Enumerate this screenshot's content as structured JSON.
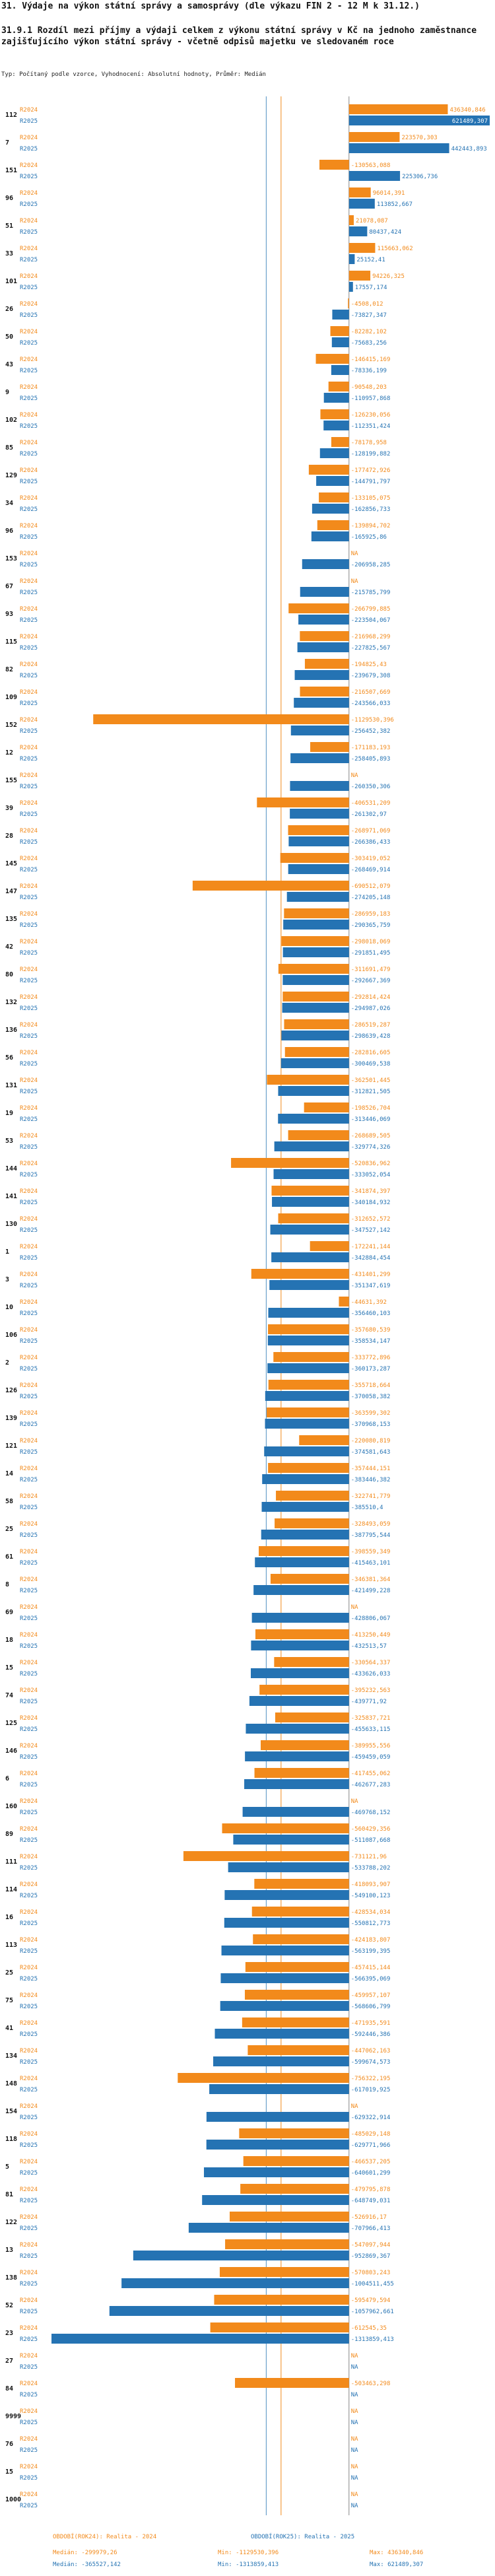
{
  "page": {
    "title": "31. Výdaje na výkon státní správy a samosprávy (dle výkazu FIN 2 - 12 M k 31.12.)",
    "subtitle": "31.9.1 Rozdíl mezi příjmy a výdaji celkem z výkonu státní správy v Kč na jednoho zaměstnance zajišťujícího výkon státní správy - včetně odpisů majetku ve sledovaném roce",
    "type_line": "Typ: Počítaný podle vzorce, Vyhodnocení: Absolutní hodnoty, Průměr: Medián"
  },
  "colors": {
    "y2024": "#f28a1b",
    "y2025": "#2573b3",
    "axis": "#888888",
    "median2024": "#f28a1b",
    "median2025": "#2573b3"
  },
  "footer": {
    "p2024_label": "OBDOBÍ(ROK24): Realita - 2024",
    "p2025_label": "OBDOBÍ(ROK25): Realita - 2025",
    "median2024": "Medián: -299979,26",
    "median2025": "Medián: -365527,142",
    "min2024": "Min: -1129530,396",
    "min2025": "Min: -1313859,413",
    "max2024": "Max: 436340,846",
    "max2025": "Max: 621489,307"
  },
  "chart_data": {
    "type": "bar",
    "orientation": "horizontal",
    "title": "31.9.1 Rozdíl mezi příjmy a výdaji celkem z výkonu státní správy v Kč na jednoho zaměstnance zajišťujícího výkon státní správy - včetně odpisů majetku ve sledovaném roce",
    "xlim": [
      -1313859.413,
      621489.307
    ],
    "medians": {
      "R2024": -299979.26,
      "R2025": -365527.142
    },
    "series_names": [
      "R2024",
      "R2025"
    ],
    "rows": [
      {
        "id": "112",
        "v24": 436340.846,
        "v25": 621489.307,
        "t24": "436340,846",
        "t25": "621489,307"
      },
      {
        "id": "7",
        "v24": 223570.303,
        "v25": 442443.893,
        "t24": "223570,303",
        "t25": "442443,893"
      },
      {
        "id": "151",
        "v24": -130563.088,
        "v25": 225306.736,
        "t24": "-130563,088",
        "t25": "225306,736"
      },
      {
        "id": "96",
        "v24": 96014.391,
        "v25": 113852.667,
        "t24": "96014,391",
        "t25": "113852,667",
        "hl": true
      },
      {
        "id": "51",
        "v24": 21078.087,
        "v25": 80437.424,
        "t24": "21078,087",
        "t25": "80437,424"
      },
      {
        "id": "33",
        "v24": 115663.062,
        "v25": 25152.41,
        "t24": "115663,062",
        "t25": "25152,41"
      },
      {
        "id": "101",
        "v24": 94226.325,
        "v25": 17557.174,
        "t24": "94226,325",
        "t25": "17557,174"
      },
      {
        "id": "26",
        "v24": -4508.012,
        "v25": -73827.347,
        "t24": "-4508,012",
        "t25": "-73827,347"
      },
      {
        "id": "50",
        "v24": -82282.102,
        "v25": -75683.256,
        "t24": "-82282,102",
        "t25": "-75683,256"
      },
      {
        "id": "43",
        "v24": -146415.169,
        "v25": -78336.199,
        "t24": "-146415,169",
        "t25": "-78336,199"
      },
      {
        "id": "9",
        "v24": -90548.203,
        "v25": -110957.868,
        "t24": "-90548,203",
        "t25": "-110957,868"
      },
      {
        "id": "102",
        "v24": -126230.056,
        "v25": -112351.424,
        "t24": "-126230,056",
        "t25": "-112351,424"
      },
      {
        "id": "85",
        "v24": -78178.958,
        "v25": -128199.882,
        "t24": "-78178,958",
        "t25": "-128199,882"
      },
      {
        "id": "129",
        "v24": -177472.926,
        "v25": -144791.797,
        "t24": "-177472,926",
        "t25": "-144791,797"
      },
      {
        "id": "34",
        "v24": -133105.075,
        "v25": -162856.733,
        "t24": "-133105,075",
        "t25": "-162856,733"
      },
      {
        "id": "96",
        "v24": -139894.702,
        "v25": -165925.86,
        "t24": "-139894,702",
        "t25": "-165925,86"
      },
      {
        "id": "153",
        "v24": null,
        "v25": -206958.285,
        "t24": "NA",
        "t25": "-206958,285"
      },
      {
        "id": "67",
        "v24": null,
        "v25": -215785.799,
        "t24": "NA",
        "t25": "-215785,799"
      },
      {
        "id": "93",
        "v24": -266799.885,
        "v25": -223504.067,
        "t24": "-266799,885",
        "t25": "-223504,067"
      },
      {
        "id": "115",
        "v24": -216968.299,
        "v25": -227825.567,
        "t24": "-216968,299",
        "t25": "-227825,567"
      },
      {
        "id": "82",
        "v24": -194825.43,
        "v25": -239679.308,
        "t24": "-194825,43",
        "t25": "-239679,308"
      },
      {
        "id": "109",
        "v24": -216507.669,
        "v25": -243566.033,
        "t24": "-216507,669",
        "t25": "-243566,033"
      },
      {
        "id": "152",
        "v24": -1129530.396,
        "v25": -256452.382,
        "t24": "-1129530,396",
        "t25": "-256452,382"
      },
      {
        "id": "12",
        "v24": -171183.193,
        "v25": -258405.893,
        "t24": "-171183,193",
        "t25": "-258405,893"
      },
      {
        "id": "155",
        "v24": null,
        "v25": -260350.306,
        "t24": "NA",
        "t25": "-260350,306"
      },
      {
        "id": "39",
        "v24": -406531.209,
        "v25": -261302.97,
        "t24": "-406531,209",
        "t25": "-261302,97"
      },
      {
        "id": "28",
        "v24": -268971.069,
        "v25": -266386.433,
        "t24": "-268971,069",
        "t25": "-266386,433"
      },
      {
        "id": "145",
        "v24": -303419.052,
        "v25": -268469.914,
        "t24": "-303419,052",
        "t25": "-268469,914"
      },
      {
        "id": "147",
        "v24": -690512.079,
        "v25": -274205.148,
        "t24": "-690512,079",
        "t25": "-274205,148"
      },
      {
        "id": "135",
        "v24": -286959.183,
        "v25": -290365.759,
        "t24": "-286959,183",
        "t25": "-290365,759"
      },
      {
        "id": "42",
        "v24": -298018.069,
        "v25": -291851.495,
        "t24": "-298018,069",
        "t25": "-291851,495"
      },
      {
        "id": "80",
        "v24": -311691.479,
        "v25": -292667.369,
        "t24": "-311691,479",
        "t25": "-292667,369"
      },
      {
        "id": "132",
        "v24": -292814.424,
        "v25": -294987.026,
        "t24": "-292814,424",
        "t25": "-294987,026"
      },
      {
        "id": "136",
        "v24": -286519.287,
        "v25": -298639.428,
        "t24": "-286519,287",
        "t25": "-298639,428"
      },
      {
        "id": "56",
        "v24": -282816.605,
        "v25": -300469.538,
        "t24": "-282816,605",
        "t25": "-300469,538"
      },
      {
        "id": "131",
        "v24": -362501.445,
        "v25": -312821.505,
        "t24": "-362501,445",
        "t25": "-312821,505"
      },
      {
        "id": "19",
        "v24": -198526.704,
        "v25": -313446.069,
        "t24": "-198526,704",
        "t25": "-313446,069"
      },
      {
        "id": "53",
        "v24": -268689.505,
        "v25": -329774.326,
        "t24": "-268689,505",
        "t25": "-329774,326"
      },
      {
        "id": "144",
        "v24": -520836.962,
        "v25": -333052.054,
        "t24": "-520836,962",
        "t25": "-333052,054"
      },
      {
        "id": "141",
        "v24": -341874.397,
        "v25": -340184.932,
        "t24": "-341874,397",
        "t25": "-340184,932"
      },
      {
        "id": "130",
        "v24": -312652.572,
        "v25": -347527.142,
        "t24": "-312652,572",
        "t25": "-347527,142"
      },
      {
        "id": "1",
        "v24": -172241.144,
        "v25": -342884.454,
        "t24": "-172241,144",
        "t25": "-342884,454"
      },
      {
        "id": "3",
        "v24": -431401.299,
        "v25": -351347.619,
        "t24": "-431401,299",
        "t25": "-351347,619"
      },
      {
        "id": "10",
        "v24": -44631.392,
        "v25": -356460.103,
        "t24": "-44631,392",
        "t25": "-356460,103"
      },
      {
        "id": "106",
        "v24": -357680.539,
        "v25": -358534.147,
        "t24": "-357680,539",
        "t25": "-358534,147"
      },
      {
        "id": "2",
        "v24": -333772.896,
        "v25": -360173.287,
        "t24": "-333772,896",
        "t25": "-360173,287"
      },
      {
        "id": "126",
        "v24": -355718.664,
        "v25": -370058.382,
        "t24": "-355718,664",
        "t25": "-370058,382"
      },
      {
        "id": "139",
        "v24": -363599.302,
        "v25": -370968.153,
        "t24": "-363599,302",
        "t25": "-370968,153"
      },
      {
        "id": "121",
        "v24": -220080.819,
        "v25": -374581.643,
        "t24": "-220080,819",
        "t25": "-374581,643"
      },
      {
        "id": "14",
        "v24": -357444.151,
        "v25": -383446.382,
        "t24": "-357444,151",
        "t25": "-383446,382"
      },
      {
        "id": "58",
        "v24": -322741.779,
        "v25": -385510.4,
        "t24": "-322741,779",
        "t25": "-385510,4"
      },
      {
        "id": "25",
        "v24": -328493.059,
        "v25": -387795.544,
        "t24": "-328493,059",
        "t25": "-387795,544"
      },
      {
        "id": "61",
        "v24": -398559.349,
        "v25": -415463.101,
        "t24": "-398559,349",
        "t25": "-415463,101"
      },
      {
        "id": "8",
        "v24": -346381.364,
        "v25": -421499.228,
        "t24": "-346381,364",
        "t25": "-421499,228"
      },
      {
        "id": "69",
        "v24": null,
        "v25": -428806.067,
        "t24": "NA",
        "t25": "-428806,067"
      },
      {
        "id": "18",
        "v24": -413250.449,
        "v25": -432513.57,
        "t24": "-413250,449",
        "t25": "-432513,57"
      },
      {
        "id": "15",
        "v24": -330564.337,
        "v25": -433626.033,
        "t24": "-330564,337",
        "t25": "-433626,033"
      },
      {
        "id": "74",
        "v24": -395232.563,
        "v25": -439771.92,
        "t24": "-395232,563",
        "t25": "-439771,92"
      },
      {
        "id": "125",
        "v24": -325837.721,
        "v25": -455633.115,
        "t24": "-325837,721",
        "t25": "-455633,115"
      },
      {
        "id": "146",
        "v24": -389955.556,
        "v25": -459459.059,
        "t24": "-389955,556",
        "t25": "-459459,059"
      },
      {
        "id": "6",
        "v24": -417455.062,
        "v25": -462677.283,
        "t24": "-417455,062",
        "t25": "-462677,283"
      },
      {
        "id": "160",
        "v24": null,
        "v25": -469768.152,
        "t24": "NA",
        "t25": "-469768,152"
      },
      {
        "id": "89",
        "v24": -560429.356,
        "v25": -511087.668,
        "t24": "-560429,356",
        "t25": "-511087,668"
      },
      {
        "id": "111",
        "v24": -731121.96,
        "v25": -533788.202,
        "t24": "-731121,96",
        "t25": "-533788,202"
      },
      {
        "id": "114",
        "v24": -418093.907,
        "v25": -549100.123,
        "t24": "-418093,907",
        "t25": "-549100,123"
      },
      {
        "id": "16",
        "v24": -428534.034,
        "v25": -550812.773,
        "t24": "-428534,034",
        "t25": "-550812,773"
      },
      {
        "id": "113",
        "v24": -424183.807,
        "v25": -563199.395,
        "t24": "-424183,807",
        "t25": "-563199,395"
      },
      {
        "id": "25",
        "v24": -457415.144,
        "v25": -566395.069,
        "t24": "-457415,144",
        "t25": "-566395,069"
      },
      {
        "id": "75",
        "v24": -459957.107,
        "v25": -568606.799,
        "t24": "-459957,107",
        "t25": "-568606,799"
      },
      {
        "id": "41",
        "v24": -471935.591,
        "v25": -592446.386,
        "t24": "-471935,591",
        "t25": "-592446,386"
      },
      {
        "id": "134",
        "v24": -447062.163,
        "v25": -599674.573,
        "t24": "-447062,163",
        "t25": "-599674,573"
      },
      {
        "id": "148",
        "v24": -756322.195,
        "v25": -617019.925,
        "t24": "-756322,195",
        "t25": "-617019,925"
      },
      {
        "id": "154",
        "v24": null,
        "v25": -629322.914,
        "t24": "NA",
        "t25": "-629322,914"
      },
      {
        "id": "118",
        "v24": -485029.148,
        "v25": -629771.966,
        "t24": "-485029,148",
        "t25": "-629771,966"
      },
      {
        "id": "5",
        "v24": -466537.205,
        "v25": -640601.299,
        "t24": "-466537,205",
        "t25": "-640601,299"
      },
      {
        "id": "81",
        "v24": -479795.878,
        "v25": -648749.031,
        "t24": "-479795,878",
        "t25": "-648749,031"
      },
      {
        "id": "122",
        "v24": -526916.17,
        "v25": -707966.413,
        "t24": "-526916,17",
        "t25": "-707966,413"
      },
      {
        "id": "13",
        "v24": -547097.944,
        "v25": -952869.367,
        "t24": "-547097,944",
        "t25": "-952869,367"
      },
      {
        "id": "138",
        "v24": -570803.243,
        "v25": -1004511.455,
        "t24": "-570803,243",
        "t25": "-1004511,455"
      },
      {
        "id": "52",
        "v24": -595479.594,
        "v25": -1057962.661,
        "t24": "-595479,594",
        "t25": "-1057962,661"
      },
      {
        "id": "23",
        "v24": -612545.35,
        "v25": -1313859.413,
        "t24": "-612545,35",
        "t25": "-1313859,413"
      },
      {
        "id": "27",
        "v24": null,
        "v25": null,
        "t24": "NA",
        "t25": "NA"
      },
      {
        "id": "84",
        "v24": -503463.298,
        "v25": null,
        "t24": "-503463,298",
        "t25": "NA"
      },
      {
        "id": "9999",
        "v24": null,
        "v25": null,
        "t24": "NA",
        "t25": "NA"
      },
      {
        "id": "76",
        "v24": null,
        "v25": null,
        "t24": "NA",
        "t25": "NA"
      },
      {
        "id": "15",
        "v24": null,
        "v25": null,
        "t24": "NA",
        "t25": "NA"
      },
      {
        "id": "1000",
        "v24": null,
        "v25": null,
        "t24": "NA",
        "t25": "NA"
      }
    ]
  }
}
